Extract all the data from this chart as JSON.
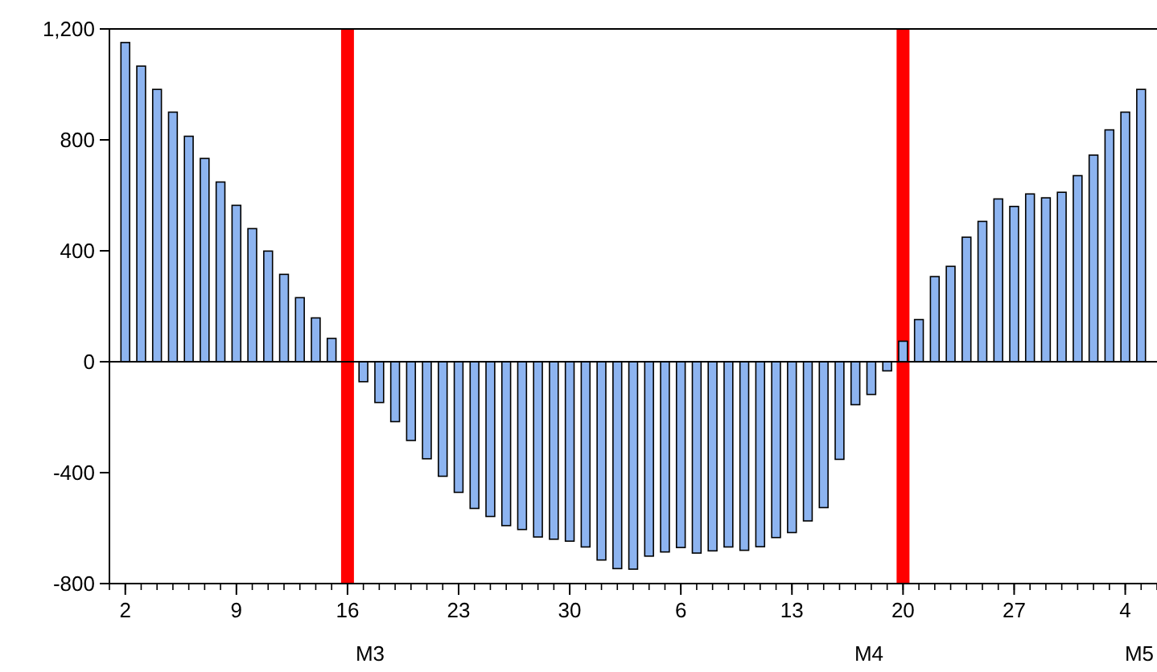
{
  "chart_data": {
    "type": "bar",
    "x": [
      "--03-02",
      "--03-03",
      "--03-04",
      "--03-05",
      "--03-06",
      "--03-07",
      "--03-08",
      "--03-09",
      "--03-10",
      "--03-11",
      "--03-12",
      "--03-13",
      "--03-14",
      "--03-15",
      "--03-16",
      "--03-17",
      "--03-18",
      "--03-19",
      "--03-20",
      "--03-21",
      "--03-22",
      "--03-23",
      "--03-24",
      "--03-25",
      "--03-26",
      "--03-27",
      "--03-28",
      "--03-29",
      "--03-30",
      "--03-31",
      "--04-01",
      "--04-02",
      "--04-03",
      "--04-04",
      "--04-05",
      "--04-06",
      "--04-07",
      "--04-08",
      "--04-09",
      "--04-10",
      "--04-11",
      "--04-12",
      "--04-13",
      "--04-14",
      "--04-15",
      "--04-16",
      "--04-17",
      "--04-18",
      "--04-19",
      "--04-20",
      "--04-21",
      "--04-22",
      "--04-23",
      "--04-24",
      "--04-25",
      "--04-26",
      "--04-27",
      "--04-28",
      "--04-29",
      "--04-30",
      "--05-01",
      "--05-02",
      "--05-03",
      "--05-04",
      "--05-05"
    ],
    "values": [
      1151,
      1066,
      982,
      900,
      813,
      733,
      648,
      564,
      480,
      399,
      315,
      231,
      158,
      84,
      null,
      -72,
      -147,
      -216,
      -284,
      -350,
      -413,
      -471,
      -529,
      -558,
      -591,
      -605,
      -632,
      -640,
      -647,
      -668,
      -715,
      -746,
      -748,
      -701,
      -686,
      -670,
      -690,
      -682,
      -668,
      -680,
      -667,
      -634,
      -616,
      -574,
      -526,
      -352,
      -155,
      -118,
      -33,
      74,
      152,
      307,
      344,
      449,
      506,
      587,
      560,
      605,
      591,
      611,
      671,
      745,
      836,
      900,
      982
    ],
    "color": "#8db4f0",
    "xlim": [
      "--03-01",
      "--05-06"
    ],
    "xticks": [
      {
        "value": "--03-02",
        "label": "2"
      },
      {
        "value": "--03-09",
        "label": "9"
      },
      {
        "value": "--03-16",
        "label": "16"
      },
      {
        "value": "--03-23",
        "label": "23"
      },
      {
        "value": "--03-30",
        "label": "30"
      },
      {
        "value": "--04-06",
        "label": "6"
      },
      {
        "value": "--04-13",
        "label": "13"
      },
      {
        "value": "--04-20",
        "label": "20"
      },
      {
        "value": "--04-27",
        "label": "27"
      },
      {
        "value": "--05-04",
        "label": "4"
      }
    ],
    "ylim": [
      -800,
      1200
    ],
    "yticks": [
      -800,
      -400,
      0,
      400,
      800,
      {
        "value": 1200,
        "label": "1,200"
      }
    ],
    "grid": false,
    "ref_lines": [
      {
        "axis": "x",
        "value": "--03-16",
        "color": "#ff0000"
      },
      {
        "axis": "x",
        "value": "--04-20",
        "color": "#ff0000"
      }
    ],
    "annotations": [
      "M3",
      "M4",
      "M5"
    ]
  }
}
